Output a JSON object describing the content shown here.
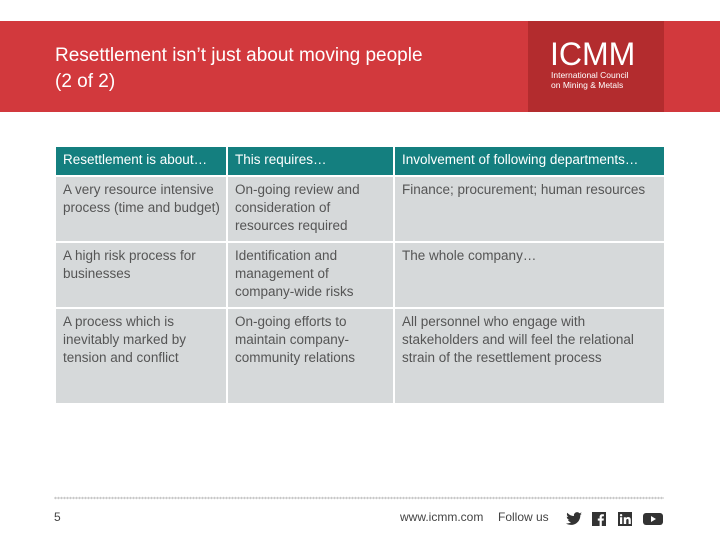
{
  "header": {
    "title_line1": "Resettlement isn’t just about moving people",
    "title_line2": "(2 of 2)",
    "logo_word": "ICMM",
    "logo_sub1": "International Council",
    "logo_sub2": "on Mining & Metals"
  },
  "table": {
    "headers": [
      "Resettlement is about…",
      "This requires…",
      "Involvement of following departments…"
    ],
    "rows": [
      [
        "A very resource intensive process (time and budget)",
        "On-going review and consideration of resources required",
        "Finance; procurement; human resources"
      ],
      [
        "A high risk process for businesses",
        "Identification and management of company-wide risks",
        "The whole company…"
      ],
      [
        "A process which is inevitably marked by tension and conflict",
        "On-going efforts to maintain company-community relations",
        "All personnel who engage with stakeholders and will feel the relational strain of the resettlement process"
      ]
    ]
  },
  "footer": {
    "page_number": "5",
    "url": "www.icmm.com",
    "follow_label": "Follow us",
    "social_icons": [
      "twitter-icon",
      "facebook-icon",
      "linkedin-icon",
      "youtube-icon"
    ]
  },
  "colors": {
    "header_red": "#d2393d",
    "logo_red": "#b32c2e",
    "table_header_teal": "#147f7f",
    "table_cell_grey": "#d6d9da"
  }
}
